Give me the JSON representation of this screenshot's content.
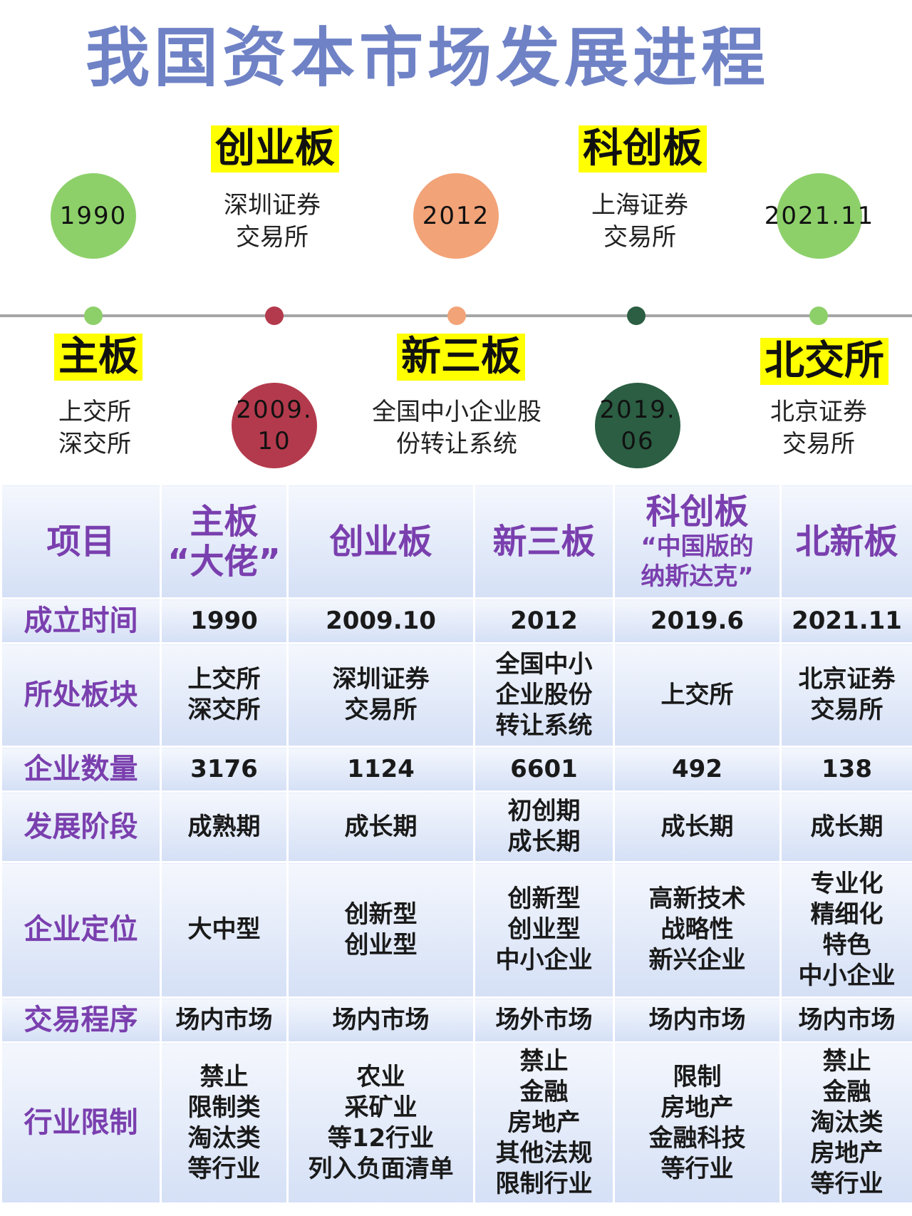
{
  "title": "我国资本市场发展进程",
  "timeline": {
    "top": [
      {
        "year": "1990",
        "color": "#8dd06a"
      },
      {
        "board": "创业板",
        "sub": "深圳证券\n交易所"
      },
      {
        "year": "2012",
        "color": "#f2a378"
      },
      {
        "board": "科创板",
        "sub": "上海证券\n交易所"
      },
      {
        "year": "2021.11",
        "color": "#8dd06a"
      }
    ],
    "bottom": [
      {
        "board": "主板",
        "sub": "上交所\n深交所"
      },
      {
        "year": "2009.\n10",
        "color": "#b33a4c"
      },
      {
        "board": "新三板",
        "sub": "全国中小企业股\n份转让系统"
      },
      {
        "year": "2019.\n06",
        "color": "#2b5e43"
      },
      {
        "board": "北交所",
        "sub": "北京证券\n交易所"
      }
    ],
    "dot_colors": [
      "#8dd06a",
      "#b33a4c",
      "#f2a378",
      "#2b5e43",
      "#8dd06a"
    ]
  },
  "table": {
    "header": {
      "item": "项目",
      "main_title": "主板",
      "main_sub": "“大佬”",
      "gem": "创业板",
      "neeq": "新三板",
      "star_title": "科创板",
      "star_sub": "“中国版的\n纳斯达克”",
      "bse": "北新板"
    },
    "rows": [
      {
        "label": "成立时间",
        "cells": [
          "1990",
          "2009.10",
          "2012",
          "2019.6",
          "2021.11"
        ]
      },
      {
        "label": "所处板块",
        "cells": [
          "上交所\n深交所",
          "深圳证券\n交易所",
          "全国中小\n企业股份\n转让系统",
          "上交所",
          "北京证券\n交易所"
        ]
      },
      {
        "label": "企业数量",
        "cells": [
          "3176",
          "1124",
          "6601",
          "492",
          "138"
        ]
      },
      {
        "label": "发展阶段",
        "cells": [
          "成熟期",
          "成长期",
          "初创期\n成长期",
          "成长期",
          "成长期"
        ]
      },
      {
        "label": "企业定位",
        "cells": [
          "大中型",
          "创新型\n创业型",
          "创新型\n创业型\n中小企业",
          "高新技术\n战略性\n新兴企业",
          "专业化\n精细化\n特色\n中小企业"
        ]
      },
      {
        "label": "交易程序",
        "cells": [
          "场内市场",
          "场内市场",
          "场外市场",
          "场内市场",
          "场内市场"
        ]
      },
      {
        "label": "行业限制",
        "cells": [
          "禁止\n限制类\n淘汰类\n等行业",
          "农业\n采矿业\n等12行业\n列入负面清单",
          "禁止\n金融\n房地产\n其他法规\n限制行业",
          "限制\n房地产\n金融科技\n等行业",
          "禁止\n金融\n淘汰类\n房地产\n等行业"
        ]
      }
    ]
  }
}
